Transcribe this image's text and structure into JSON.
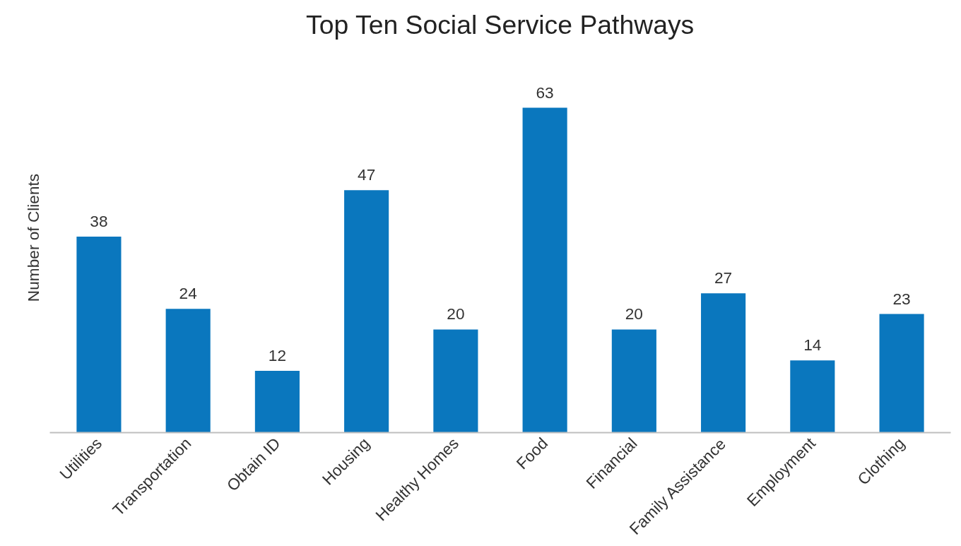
{
  "chart_data": {
    "type": "bar",
    "title": "Top Ten Social Service Pathways",
    "ylabel": "Number of Clients",
    "categories": [
      "Utilities",
      "Transportation",
      "Obtain ID",
      "Housing",
      "Healthy Homes",
      "Food",
      "Financial",
      "Family Assistance",
      "Employment",
      "Clothing"
    ],
    "values": [
      38,
      24,
      12,
      47,
      20,
      63,
      20,
      27,
      14,
      23
    ],
    "color": "#0a77be",
    "data_labels": true,
    "grid": false
  }
}
